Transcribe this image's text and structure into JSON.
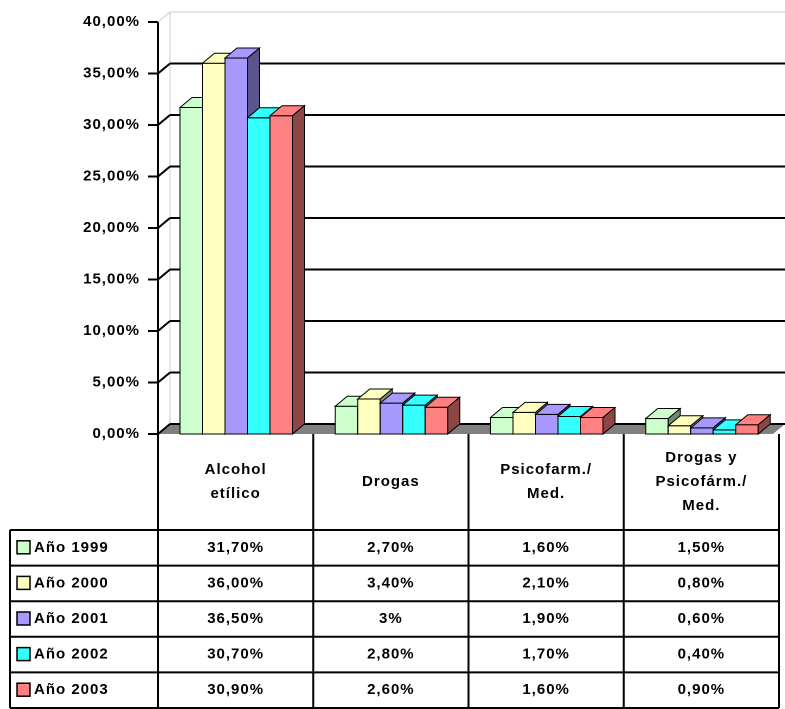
{
  "chart_data": {
    "type": "bar3d",
    "categories": [
      "Alcohol\netílico",
      "Drogas",
      "Psicofarm./\nMed.",
      "Drogas y\nPsicofárm./\nMed."
    ],
    "series": [
      {
        "name": "Año 1999",
        "color": "#ccffcc",
        "values": [
          31.7,
          2.7,
          1.6,
          1.5
        ],
        "value_labels": [
          "31,70%",
          "2,70%",
          "1,60%",
          "1,50%"
        ]
      },
      {
        "name": "Año 2000",
        "color": "#ffffc0",
        "values": [
          36.0,
          3.4,
          2.1,
          0.8
        ],
        "value_labels": [
          "36,00%",
          "3,40%",
          "2,10%",
          "0,80%"
        ]
      },
      {
        "name": "Año 2001",
        "color": "#a899ff",
        "values": [
          36.5,
          3,
          1.9,
          0.6
        ],
        "value_labels": [
          "36,50%",
          "3%",
          "1,90%",
          "0,60%"
        ]
      },
      {
        "name": "Año 2002",
        "color": "#33ffff",
        "values": [
          30.7,
          2.8,
          1.7,
          0.4
        ],
        "value_labels": [
          "30,70%",
          "2,80%",
          "1,70%",
          "0,40%"
        ]
      },
      {
        "name": "Año 2003",
        "color": "#ff8080",
        "values": [
          30.9,
          2.6,
          1.6,
          0.9
        ],
        "value_labels": [
          "30,90%",
          "2,60%",
          "1,60%",
          "0,90%"
        ]
      }
    ],
    "ylim": [
      0,
      40
    ],
    "yticks": [
      {
        "value": 0,
        "label": "0,00%"
      },
      {
        "value": 5,
        "label": "5,00%"
      },
      {
        "value": 10,
        "label": "10,00%"
      },
      {
        "value": 15,
        "label": "15,00%"
      },
      {
        "value": 20,
        "label": "20,00%"
      },
      {
        "value": 25,
        "label": "25,00%"
      },
      {
        "value": 30,
        "label": "30,00%"
      },
      {
        "value": 35,
        "label": "35,00%"
      },
      {
        "value": 40,
        "label": "40,00%"
      }
    ],
    "grid": true
  }
}
